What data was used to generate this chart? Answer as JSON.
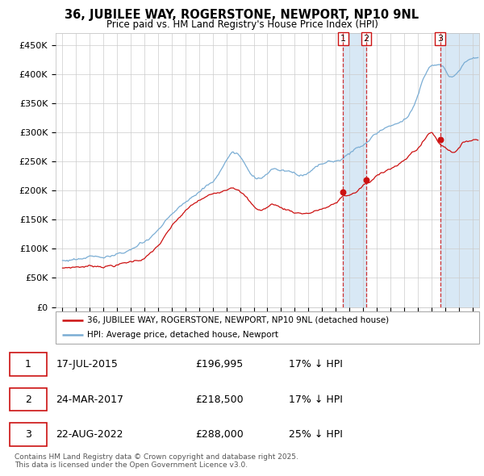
{
  "title": "36, JUBILEE WAY, ROGERSTONE, NEWPORT, NP10 9NL",
  "subtitle": "Price paid vs. HM Land Registry's House Price Index (HPI)",
  "ylim": [
    0,
    470000
  ],
  "yticks": [
    0,
    50000,
    100000,
    150000,
    200000,
    250000,
    300000,
    350000,
    400000,
    450000
  ],
  "ytick_labels": [
    "£0",
    "£50K",
    "£100K",
    "£150K",
    "£200K",
    "£250K",
    "£300K",
    "£350K",
    "£400K",
    "£450K"
  ],
  "hpi_color": "#7aadd4",
  "price_color": "#cc1111",
  "vline_color": "#cc1111",
  "shade_color": "#d8e8f5",
  "sale_dates_num": [
    2015.54,
    2017.23,
    2022.64
  ],
  "sale_prices": [
    196995,
    218500,
    288000
  ],
  "sale_labels": [
    "1",
    "2",
    "3"
  ],
  "legend_label_price": "36, JUBILEE WAY, ROGERSTONE, NEWPORT, NP10 9NL (detached house)",
  "legend_label_hpi": "HPI: Average price, detached house, Newport",
  "table_rows": [
    [
      "1",
      "17-JUL-2015",
      "£196,995",
      "17% ↓ HPI"
    ],
    [
      "2",
      "24-MAR-2017",
      "£218,500",
      "17% ↓ HPI"
    ],
    [
      "3",
      "22-AUG-2022",
      "£288,000",
      "25% ↓ HPI"
    ]
  ],
  "footer": "Contains HM Land Registry data © Crown copyright and database right 2025.\nThis data is licensed under the Open Government Licence v3.0.",
  "background_color": "#ffffff",
  "grid_color": "#cccccc",
  "xlim_start": 1994.5,
  "xlim_end": 2025.5
}
